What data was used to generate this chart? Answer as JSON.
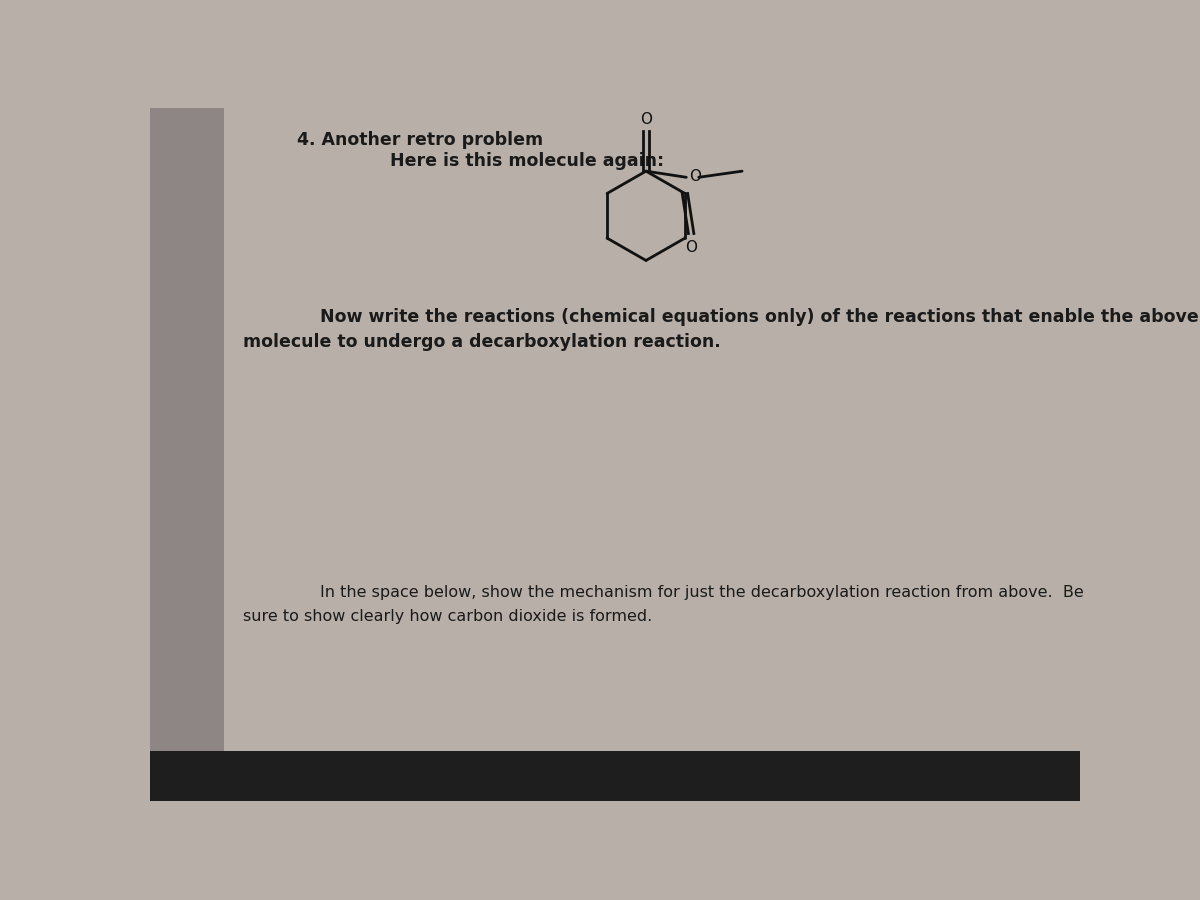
{
  "title": "4. Another retro problem",
  "subtitle": "Here is this molecule again:",
  "text1_line1": "Now write the reactions (chemical equations only) of the reactions that enable the above",
  "text1_line2": "molecule to undergo a decarboxylation reaction.",
  "text2_line1": "In the space below, show the mechanism for just the decarboxylation reaction from above.  Be",
  "text2_line2": "sure to show clearly how carbon dioxide is formed.",
  "bg_color": "#b8b0a8",
  "page_color": "#dbd5cc",
  "left_bar_color": "#8a8280",
  "taskbar_color": "#1e1e1e",
  "text_color": "#1a1a1a",
  "molecule_color": "#111111",
  "title_fontsize": 12.5,
  "subtitle_fontsize": 12.5,
  "text1_fontsize": 12.5,
  "text2_fontsize": 11.5
}
